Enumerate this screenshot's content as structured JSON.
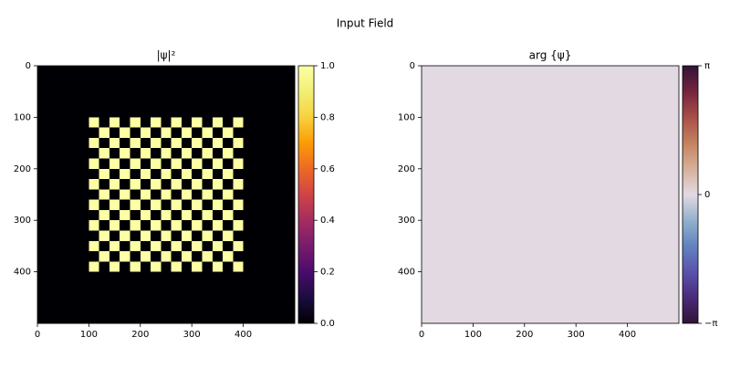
{
  "title": "Input Field",
  "chart_data": [
    {
      "type": "heatmap",
      "title": "|ψ|²",
      "colormap": "inferno",
      "xlim": [
        0,
        500
      ],
      "ylim": [
        500,
        0
      ],
      "xticks": [
        0,
        100,
        200,
        300,
        400
      ],
      "yticks": [
        0,
        100,
        200,
        300,
        400
      ],
      "clim": [
        0,
        1
      ],
      "cticks": [
        {
          "value": 0,
          "label": "0.0"
        },
        {
          "value": 0.2,
          "label": "0.2"
        },
        {
          "value": 0.4,
          "label": "0.4"
        },
        {
          "value": 0.6,
          "label": "0.6"
        },
        {
          "value": 0.8,
          "label": "0.8"
        },
        {
          "value": 1,
          "label": "1.0"
        }
      ],
      "values": [
        [
          0,
          0,
          0,
          0,
          0,
          0,
          0,
          0,
          0,
          0,
          0,
          0,
          0,
          0,
          0,
          0,
          0,
          0,
          0,
          0,
          0,
          0,
          0,
          0,
          0
        ],
        [
          0,
          0,
          0,
          0,
          0,
          0,
          0,
          0,
          0,
          0,
          0,
          0,
          0,
          0,
          0,
          0,
          0,
          0,
          0,
          0,
          0,
          0,
          0,
          0,
          0
        ],
        [
          0,
          0,
          0,
          0,
          0,
          0,
          0,
          0,
          0,
          0,
          0,
          0,
          0,
          0,
          0,
          0,
          0,
          0,
          0,
          0,
          0,
          0,
          0,
          0,
          0
        ],
        [
          0,
          0,
          0,
          0,
          0,
          0,
          0,
          0,
          0,
          0,
          0,
          0,
          0,
          0,
          0,
          0,
          0,
          0,
          0,
          0,
          0,
          0,
          0,
          0,
          0
        ],
        [
          0,
          0,
          0,
          0,
          0,
          0,
          0,
          0,
          0,
          0,
          0,
          0,
          0,
          0,
          0,
          0,
          0,
          0,
          0,
          0,
          0,
          0,
          0,
          0,
          0
        ],
        [
          0,
          0,
          0,
          0,
          0,
          1,
          0,
          1,
          0,
          1,
          0,
          1,
          0,
          1,
          0,
          1,
          0,
          1,
          0,
          1,
          0,
          0,
          0,
          0,
          0
        ],
        [
          0,
          0,
          0,
          0,
          0,
          0,
          1,
          0,
          1,
          0,
          1,
          0,
          1,
          0,
          1,
          0,
          1,
          0,
          1,
          0,
          0,
          0,
          0,
          0,
          0
        ],
        [
          0,
          0,
          0,
          0,
          0,
          1,
          0,
          1,
          0,
          1,
          0,
          1,
          0,
          1,
          0,
          1,
          0,
          1,
          0,
          1,
          0,
          0,
          0,
          0,
          0
        ],
        [
          0,
          0,
          0,
          0,
          0,
          0,
          1,
          0,
          1,
          0,
          1,
          0,
          1,
          0,
          1,
          0,
          1,
          0,
          1,
          0,
          0,
          0,
          0,
          0,
          0
        ],
        [
          0,
          0,
          0,
          0,
          0,
          1,
          0,
          1,
          0,
          1,
          0,
          1,
          0,
          1,
          0,
          1,
          0,
          1,
          0,
          1,
          0,
          0,
          0,
          0,
          0
        ],
        [
          0,
          0,
          0,
          0,
          0,
          0,
          1,
          0,
          1,
          0,
          1,
          0,
          1,
          0,
          1,
          0,
          1,
          0,
          1,
          0,
          0,
          0,
          0,
          0,
          0
        ],
        [
          0,
          0,
          0,
          0,
          0,
          1,
          0,
          1,
          0,
          1,
          0,
          1,
          0,
          1,
          0,
          1,
          0,
          1,
          0,
          1,
          0,
          0,
          0,
          0,
          0
        ],
        [
          0,
          0,
          0,
          0,
          0,
          0,
          1,
          0,
          1,
          0,
          1,
          0,
          1,
          0,
          1,
          0,
          1,
          0,
          1,
          0,
          0,
          0,
          0,
          0,
          0
        ],
        [
          0,
          0,
          0,
          0,
          0,
          1,
          0,
          1,
          0,
          1,
          0,
          1,
          0,
          1,
          0,
          1,
          0,
          1,
          0,
          1,
          0,
          0,
          0,
          0,
          0
        ],
        [
          0,
          0,
          0,
          0,
          0,
          0,
          1,
          0,
          1,
          0,
          1,
          0,
          1,
          0,
          1,
          0,
          1,
          0,
          1,
          0,
          0,
          0,
          0,
          0,
          0
        ],
        [
          0,
          0,
          0,
          0,
          0,
          1,
          0,
          1,
          0,
          1,
          0,
          1,
          0,
          1,
          0,
          1,
          0,
          1,
          0,
          1,
          0,
          0,
          0,
          0,
          0
        ],
        [
          0,
          0,
          0,
          0,
          0,
          0,
          1,
          0,
          1,
          0,
          1,
          0,
          1,
          0,
          1,
          0,
          1,
          0,
          1,
          0,
          0,
          0,
          0,
          0,
          0
        ],
        [
          0,
          0,
          0,
          0,
          0,
          1,
          0,
          1,
          0,
          1,
          0,
          1,
          0,
          1,
          0,
          1,
          0,
          1,
          0,
          1,
          0,
          0,
          0,
          0,
          0
        ],
        [
          0,
          0,
          0,
          0,
          0,
          0,
          1,
          0,
          1,
          0,
          1,
          0,
          1,
          0,
          1,
          0,
          1,
          0,
          1,
          0,
          0,
          0,
          0,
          0,
          0
        ],
        [
          0,
          0,
          0,
          0,
          0,
          1,
          0,
          1,
          0,
          1,
          0,
          1,
          0,
          1,
          0,
          1,
          0,
          1,
          0,
          1,
          0,
          0,
          0,
          0,
          0
        ],
        [
          0,
          0,
          0,
          0,
          0,
          0,
          0,
          0,
          0,
          0,
          0,
          0,
          0,
          0,
          0,
          0,
          0,
          0,
          0,
          0,
          0,
          0,
          0,
          0,
          0
        ],
        [
          0,
          0,
          0,
          0,
          0,
          0,
          0,
          0,
          0,
          0,
          0,
          0,
          0,
          0,
          0,
          0,
          0,
          0,
          0,
          0,
          0,
          0,
          0,
          0,
          0
        ],
        [
          0,
          0,
          0,
          0,
          0,
          0,
          0,
          0,
          0,
          0,
          0,
          0,
          0,
          0,
          0,
          0,
          0,
          0,
          0,
          0,
          0,
          0,
          0,
          0,
          0
        ],
        [
          0,
          0,
          0,
          0,
          0,
          0,
          0,
          0,
          0,
          0,
          0,
          0,
          0,
          0,
          0,
          0,
          0,
          0,
          0,
          0,
          0,
          0,
          0,
          0,
          0
        ],
        [
          0,
          0,
          0,
          0,
          0,
          0,
          0,
          0,
          0,
          0,
          0,
          0,
          0,
          0,
          0,
          0,
          0,
          0,
          0,
          0,
          0,
          0,
          0,
          0,
          0
        ]
      ]
    },
    {
      "type": "heatmap",
      "title": "arg {ψ}",
      "colormap": "twilight_shifted",
      "xlim": [
        0,
        500
      ],
      "ylim": [
        500,
        0
      ],
      "xticks": [
        0,
        100,
        200,
        300,
        400
      ],
      "yticks": [
        0,
        100,
        200,
        300,
        400
      ],
      "clim": [
        -3.141592653589793,
        3.141592653589793
      ],
      "cticks": [
        {
          "value": -3.141592653589793,
          "label": "−π"
        },
        0,
        {
          "value": 3.141592653589793,
          "label": "π"
        }
      ],
      "values": [
        [
          0
        ]
      ]
    }
  ]
}
